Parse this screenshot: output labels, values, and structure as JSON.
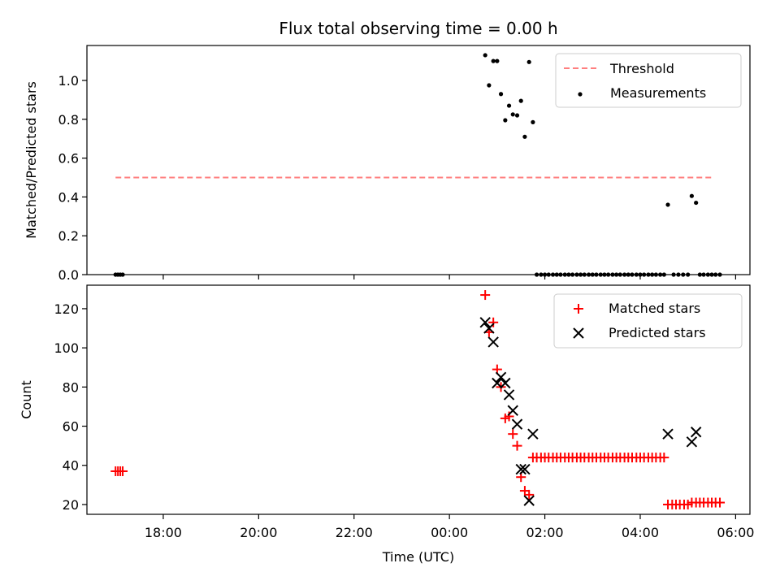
{
  "chart_data": [
    {
      "type": "line+scatter",
      "title": "Flux total observing time = 0.00 h",
      "ylabel": "Matched/Predicted stars",
      "ylim": [
        0,
        1.18
      ],
      "yticks": [
        "0.0",
        "0.2",
        "0.4",
        "0.6",
        "0.8",
        "1.0"
      ],
      "xlim_hours": [
        16.4,
        30.3
      ],
      "threshold": {
        "name": "Threshold",
        "color": "#ff7f7f",
        "x": [
          17.0,
          29.5
        ],
        "y": 0.5
      },
      "measurements": {
        "name": "Measurements",
        "color": "#000000",
        "points": [
          [
            17.0,
            0.0
          ],
          [
            17.05,
            0.0
          ],
          [
            17.1,
            0.0
          ],
          [
            17.15,
            0.0
          ],
          [
            24.75,
            1.13
          ],
          [
            24.83,
            0.975
          ],
          [
            24.92,
            1.1
          ],
          [
            25.0,
            1.1
          ],
          [
            25.08,
            0.93
          ],
          [
            25.17,
            0.795
          ],
          [
            25.25,
            0.87
          ],
          [
            25.33,
            0.825
          ],
          [
            25.42,
            0.82
          ],
          [
            25.5,
            0.895
          ],
          [
            25.58,
            0.71
          ],
          [
            25.67,
            1.095
          ],
          [
            25.75,
            0.785
          ],
          [
            25.83,
            0.0
          ],
          [
            25.92,
            0.0
          ],
          [
            26.0,
            0.0
          ],
          [
            26.08,
            0.0
          ],
          [
            26.17,
            0.0
          ],
          [
            26.25,
            0.0
          ],
          [
            26.33,
            0.0
          ],
          [
            26.42,
            0.0
          ],
          [
            26.5,
            0.0
          ],
          [
            26.58,
            0.0
          ],
          [
            26.67,
            0.0
          ],
          [
            26.75,
            0.0
          ],
          [
            26.83,
            0.0
          ],
          [
            26.92,
            0.0
          ],
          [
            27.0,
            0.0
          ],
          [
            27.08,
            0.0
          ],
          [
            27.17,
            0.0
          ],
          [
            27.25,
            0.0
          ],
          [
            27.33,
            0.0
          ],
          [
            27.42,
            0.0
          ],
          [
            27.5,
            0.0
          ],
          [
            27.58,
            0.0
          ],
          [
            27.67,
            0.0
          ],
          [
            27.75,
            0.0
          ],
          [
            27.83,
            0.0
          ],
          [
            27.92,
            0.0
          ],
          [
            28.0,
            0.0
          ],
          [
            28.08,
            0.0
          ],
          [
            28.17,
            0.0
          ],
          [
            28.25,
            0.0
          ],
          [
            28.33,
            0.0
          ],
          [
            28.42,
            0.0
          ],
          [
            28.5,
            0.0
          ],
          [
            28.58,
            0.36
          ],
          [
            28.7,
            0.0
          ],
          [
            28.8,
            0.0
          ],
          [
            28.9,
            0.0
          ],
          [
            29.0,
            0.0
          ],
          [
            29.08,
            0.405
          ],
          [
            29.17,
            0.37
          ],
          [
            29.25,
            0.0
          ],
          [
            29.33,
            0.0
          ],
          [
            29.42,
            0.0
          ],
          [
            29.5,
            0.0
          ],
          [
            29.58,
            0.0
          ],
          [
            29.67,
            0.0
          ]
        ]
      },
      "legend": [
        "Threshold",
        "Measurements"
      ],
      "legend_position": "upper right"
    },
    {
      "type": "scatter",
      "xlabel": "Time (UTC)",
      "ylabel": "Count",
      "ylim": [
        15,
        132
      ],
      "yticks": [
        "20",
        "40",
        "60",
        "80",
        "100",
        "120"
      ],
      "xlim_hours": [
        16.4,
        30.3
      ],
      "xticks": [
        {
          "hour": 18,
          "label": "18:00"
        },
        {
          "hour": 20,
          "label": "20:00"
        },
        {
          "hour": 22,
          "label": "22:00"
        },
        {
          "hour": 24,
          "label": "00:00"
        },
        {
          "hour": 26,
          "label": "02:00"
        },
        {
          "hour": 28,
          "label": "04:00"
        },
        {
          "hour": 30,
          "label": "06:00"
        }
      ],
      "series": [
        {
          "name": "Matched stars",
          "marker": "plus",
          "color": "#ff0000",
          "points": [
            [
              17.0,
              37
            ],
            [
              17.05,
              37
            ],
            [
              17.1,
              37
            ],
            [
              17.15,
              37
            ],
            [
              24.75,
              127
            ],
            [
              24.83,
              108
            ],
            [
              24.92,
              113
            ],
            [
              25.0,
              89
            ],
            [
              25.08,
              80
            ],
            [
              25.17,
              64
            ],
            [
              25.25,
              65
            ],
            [
              25.33,
              56
            ],
            [
              25.42,
              50
            ],
            [
              25.5,
              34
            ],
            [
              25.58,
              27
            ],
            [
              25.67,
              25
            ],
            [
              25.75,
              44
            ],
            [
              25.83,
              44
            ],
            [
              25.92,
              44
            ],
            [
              26.0,
              44
            ],
            [
              26.08,
              44
            ],
            [
              26.17,
              44
            ],
            [
              26.25,
              44
            ],
            [
              26.33,
              44
            ],
            [
              26.42,
              44
            ],
            [
              26.5,
              44
            ],
            [
              26.58,
              44
            ],
            [
              26.67,
              44
            ],
            [
              26.75,
              44
            ],
            [
              26.83,
              44
            ],
            [
              26.92,
              44
            ],
            [
              27.0,
              44
            ],
            [
              27.08,
              44
            ],
            [
              27.17,
              44
            ],
            [
              27.25,
              44
            ],
            [
              27.33,
              44
            ],
            [
              27.42,
              44
            ],
            [
              27.5,
              44
            ],
            [
              27.58,
              44
            ],
            [
              27.67,
              44
            ],
            [
              27.75,
              44
            ],
            [
              27.83,
              44
            ],
            [
              27.92,
              44
            ],
            [
              28.0,
              44
            ],
            [
              28.08,
              44
            ],
            [
              28.17,
              44
            ],
            [
              28.25,
              44
            ],
            [
              28.33,
              44
            ],
            [
              28.42,
              44
            ],
            [
              28.5,
              44
            ],
            [
              28.58,
              20
            ],
            [
              28.67,
              20
            ],
            [
              28.75,
              20
            ],
            [
              28.83,
              20
            ],
            [
              28.92,
              20
            ],
            [
              29.0,
              20
            ],
            [
              29.08,
              21
            ],
            [
              29.17,
              21
            ],
            [
              29.25,
              21
            ],
            [
              29.33,
              21
            ],
            [
              29.42,
              21
            ],
            [
              29.5,
              21
            ],
            [
              29.58,
              21
            ],
            [
              29.67,
              21
            ]
          ]
        },
        {
          "name": "Predicted stars",
          "marker": "x",
          "color": "#000000",
          "points": [
            [
              24.75,
              113
            ],
            [
              24.83,
              110
            ],
            [
              24.92,
              103
            ],
            [
              25.0,
              82
            ],
            [
              25.08,
              85
            ],
            [
              25.17,
              82
            ],
            [
              25.25,
              76
            ],
            [
              25.33,
              68
            ],
            [
              25.42,
              61
            ],
            [
              25.5,
              38
            ],
            [
              25.58,
              38
            ],
            [
              25.67,
              22
            ],
            [
              25.75,
              56
            ],
            [
              28.58,
              56
            ],
            [
              29.08,
              52
            ],
            [
              29.17,
              57
            ]
          ]
        }
      ],
      "legend_position": "upper right"
    }
  ]
}
